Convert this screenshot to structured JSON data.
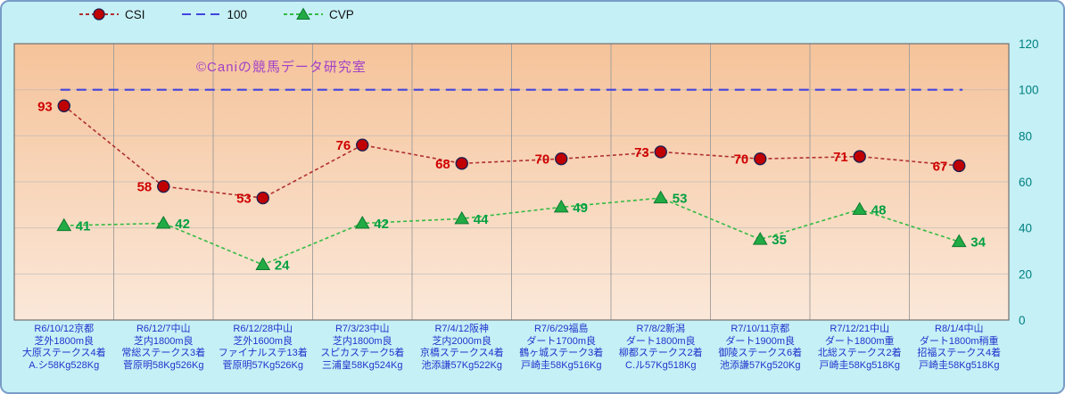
{
  "watermark": "©Caniの競馬データ研究室",
  "legend": {
    "items": [
      {
        "label": "CSI",
        "marker": "circle",
        "color": "#C00000",
        "line_color": "#B03030"
      },
      {
        "label": "100",
        "marker": "none",
        "color": "#4444DD",
        "line_color": "#4444DD"
      },
      {
        "label": "CVP",
        "marker": "triangle",
        "color": "#22AA44",
        "line_color": "#33BB44"
      }
    ]
  },
  "chart_data": {
    "type": "line",
    "title": "",
    "xlabel": "",
    "ylabel": "",
    "ylim": [
      0,
      120
    ],
    "yticks": [
      0,
      20,
      40,
      60,
      80,
      100,
      120
    ],
    "y_axis_side": "right",
    "grid": true,
    "legend_position": "top",
    "line_style": "dashed",
    "reference_line": {
      "name": "100",
      "value": 100,
      "color": "#4444DD",
      "style": "dashed"
    },
    "categories": [
      [
        "R6/10/12京都",
        "芝外1800m良",
        "大原ステークス4着",
        "A.シ58Kg528Kg"
      ],
      [
        "R6/12/7中山",
        "芝内1800m良",
        "常総ステークス3着",
        "菅原明58Kg526Kg"
      ],
      [
        "R6/12/28中山",
        "芝外1600m良",
        "ファイナルステ13着",
        "菅原明57Kg526Kg"
      ],
      [
        "R7/3/23中山",
        "芝内1800m良",
        "スピカステーク5着",
        "三浦皇58Kg524Kg"
      ],
      [
        "R7/4/12阪神",
        "芝内2000m良",
        "京橋ステークス4着",
        "池添謙57Kg522Kg"
      ],
      [
        "R7/6/29福島",
        "ダート1700m良",
        "鶴ヶ城ステーク3着",
        "戸崎圭58Kg516Kg"
      ],
      [
        "R7/8/2新潟",
        "ダート1800m良",
        "柳都ステークス2着",
        "C.ル57Kg518Kg"
      ],
      [
        "R7/10/11京都",
        "ダート1900m良",
        "御陵ステークス6着",
        "池添謙57Kg520Kg"
      ],
      [
        "R7/12/21中山",
        "ダート1800m重",
        "北総ステークス2着",
        "戸崎圭58Kg518Kg"
      ],
      [
        "R8/1/4中山",
        "ダート1800m稍重",
        "招福ステークス4着",
        "戸崎圭58Kg518Kg"
      ]
    ],
    "series": [
      {
        "name": "CSI",
        "marker": "circle",
        "color": "#C00000",
        "line_color": "#B03030",
        "label_color": "#D00000",
        "values": [
          93,
          58,
          53,
          76,
          68,
          70,
          73,
          70,
          71,
          67
        ]
      },
      {
        "name": "CVP",
        "marker": "triangle",
        "color": "#22AA44",
        "line_color": "#33BB44",
        "label_color": "#00A040",
        "values": [
          41,
          42,
          24,
          42,
          44,
          49,
          53,
          35,
          48,
          34
        ]
      }
    ]
  },
  "y_tick_labels": [
    "0",
    "20",
    "40",
    "60",
    "80",
    "100",
    "120"
  ],
  "colors": {
    "page_bg": "#C5F0F6",
    "plot_gradient_top": "#F5C39A",
    "plot_gradient_bottom": "#FBE8D9",
    "grid_h": "#B5B5B5",
    "grid_v": "#999999",
    "plot_border": "#707070",
    "outer_border": "#7A9CC8",
    "x_label": "#2233CC",
    "y_label": "#008080",
    "watermark": "#9933CC",
    "legend_text": "#111111"
  }
}
